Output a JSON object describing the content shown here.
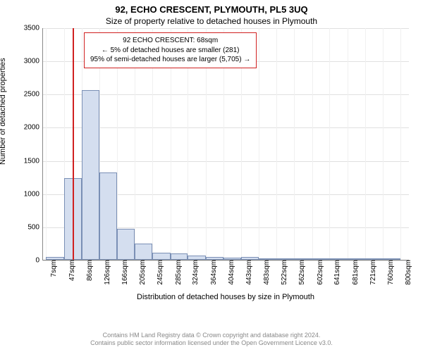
{
  "header": {
    "title": "92, ECHO CRESCENT, PLYMOUTH, PL5 3UQ",
    "subtitle": "Size of property relative to detached houses in Plymouth"
  },
  "chart": {
    "type": "histogram",
    "ylabel": "Number of detached properties",
    "xlabel": "Distribution of detached houses by size in Plymouth",
    "ylim": [
      0,
      3500
    ],
    "ytick_step": 500,
    "yticks": [
      0,
      500,
      1000,
      1500,
      2000,
      2500,
      3000,
      3500
    ],
    "xtick_values": [
      7,
      47,
      86,
      126,
      166,
      205,
      245,
      285,
      324,
      364,
      404,
      443,
      483,
      522,
      562,
      602,
      641,
      681,
      721,
      760,
      800
    ],
    "xtick_unit": "sqm",
    "x_range": [
      0,
      820
    ],
    "bars": [
      {
        "x0": 7,
        "x1": 47,
        "value": 40
      },
      {
        "x0": 47,
        "x1": 86,
        "value": 1230
      },
      {
        "x0": 86,
        "x1": 126,
        "value": 2560
      },
      {
        "x0": 126,
        "x1": 166,
        "value": 1320
      },
      {
        "x0": 166,
        "x1": 205,
        "value": 470
      },
      {
        "x0": 205,
        "x1": 245,
        "value": 240
      },
      {
        "x0": 245,
        "x1": 285,
        "value": 110
      },
      {
        "x0": 285,
        "x1": 324,
        "value": 100
      },
      {
        "x0": 324,
        "x1": 364,
        "value": 60
      },
      {
        "x0": 364,
        "x1": 404,
        "value": 40
      },
      {
        "x0": 404,
        "x1": 443,
        "value": 30
      },
      {
        "x0": 443,
        "x1": 483,
        "value": 40
      },
      {
        "x0": 483,
        "x1": 522,
        "value": 5
      },
      {
        "x0": 522,
        "x1": 562,
        "value": 5
      },
      {
        "x0": 562,
        "x1": 602,
        "value": 3
      },
      {
        "x0": 602,
        "x1": 641,
        "value": 3
      },
      {
        "x0": 641,
        "x1": 681,
        "value": 2
      },
      {
        "x0": 681,
        "x1": 721,
        "value": 2
      },
      {
        "x0": 721,
        "x1": 760,
        "value": 2
      },
      {
        "x0": 760,
        "x1": 800,
        "value": 2
      }
    ],
    "marker": {
      "x": 68,
      "color": "#d02020"
    },
    "bar_fill": "#d4deef",
    "bar_border": "#7a8fb5",
    "grid_color": "#e0e0e0",
    "background_color": "#ffffff",
    "tick_fontsize": 10,
    "label_fontsize": 11
  },
  "infobox": {
    "line1": "92 ECHO CRESCENT: 68sqm",
    "line2": "← 5% of detached houses are smaller (281)",
    "line3": "95% of semi-detached houses are larger (5,705) →",
    "border_color": "#d02020"
  },
  "footer": {
    "line1": "Contains HM Land Registry data © Crown copyright and database right 2024.",
    "line2": "Contains public sector information licensed under the Open Government Licence v3.0."
  }
}
